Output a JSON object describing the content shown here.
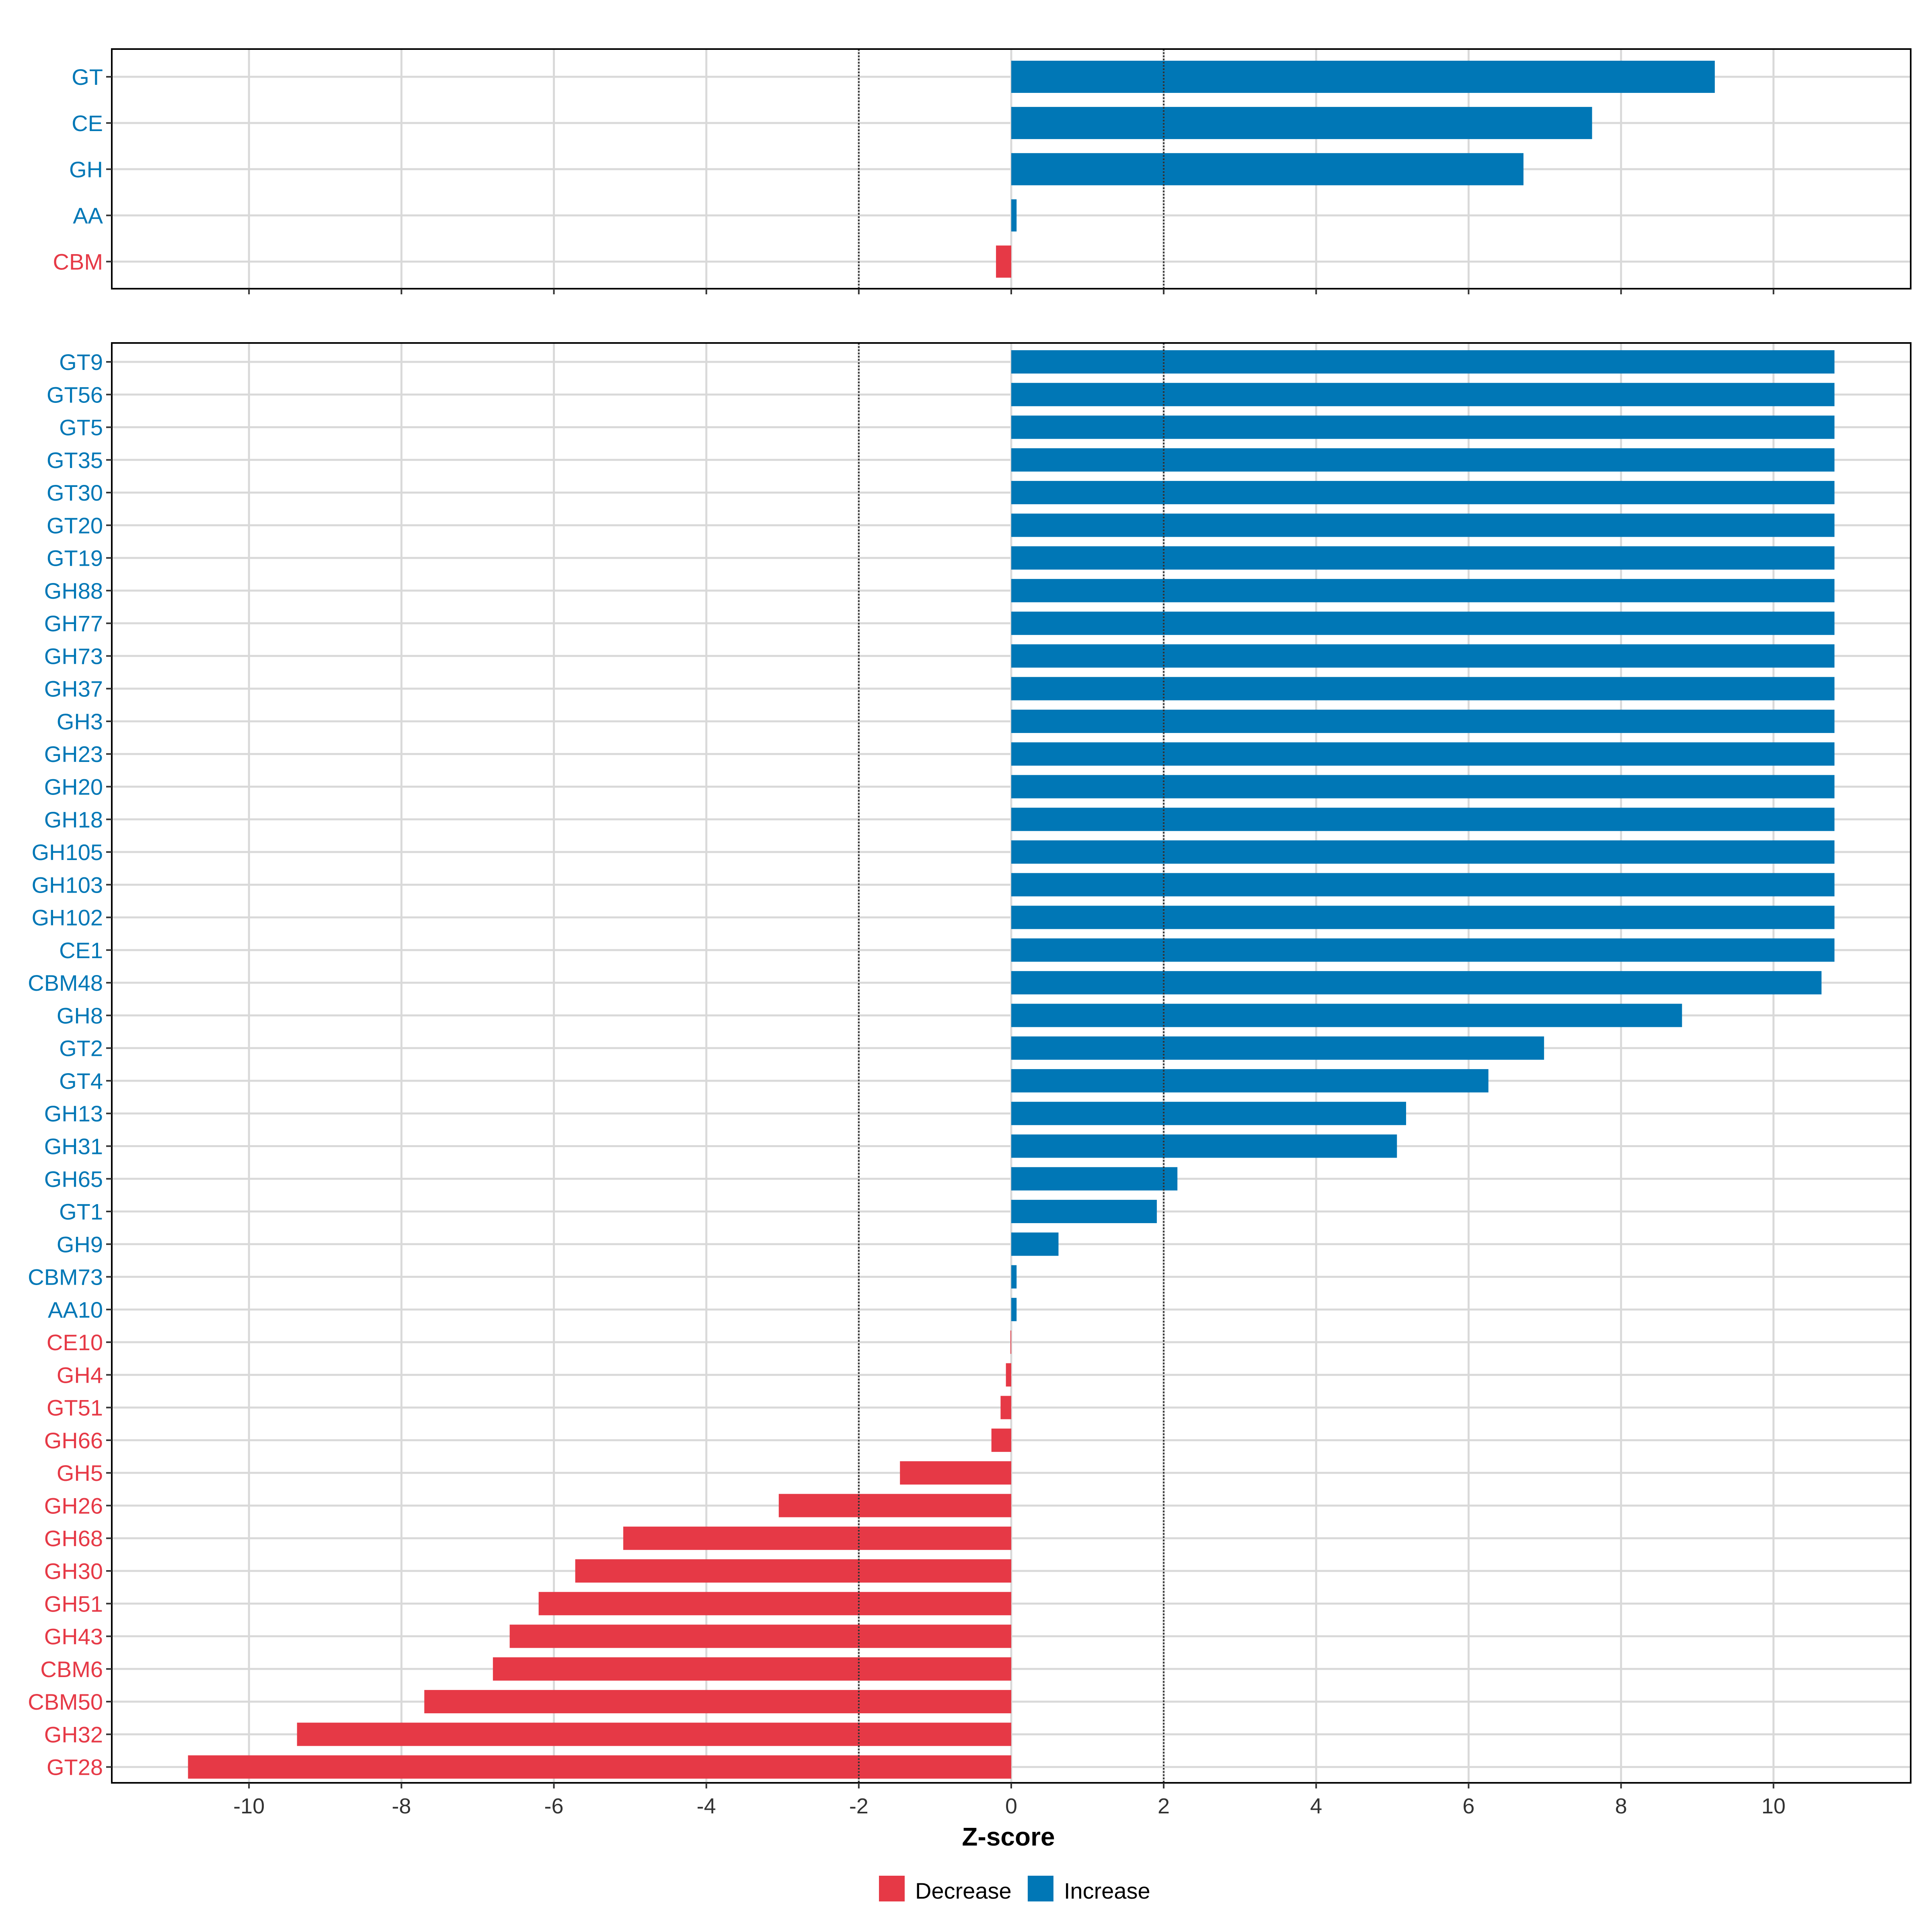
{
  "colors": {
    "decrease": "#E63946",
    "increase": "#0077B6",
    "grid": "#D9D9D9",
    "threshold": "#333333",
    "axis_text": "#333333"
  },
  "legend": {
    "decrease_label": "Decrease",
    "increase_label": "Increase"
  },
  "chart_data": [
    {
      "type": "bar",
      "orientation": "horizontal",
      "panel": "top",
      "title": "",
      "xlabel": "",
      "ylabel": "",
      "xlim": [
        -11.8,
        11.8
      ],
      "xticks": [
        -10,
        -8,
        -6,
        -4,
        -2,
        0,
        2,
        4,
        6,
        8,
        10
      ],
      "show_tick_labels": false,
      "thresholds": [
        -2,
        2
      ],
      "grid": true,
      "categories": [
        "GT",
        "CE",
        "GH",
        "AA",
        "CBM"
      ],
      "values": [
        9.23,
        7.62,
        6.72,
        0.07,
        -0.2
      ]
    },
    {
      "type": "bar",
      "orientation": "horizontal",
      "panel": "bottom",
      "title": "",
      "xlabel": "Z-score",
      "ylabel": "",
      "xlim": [
        -11.8,
        11.8
      ],
      "xticks": [
        -10,
        -8,
        -6,
        -4,
        -2,
        0,
        2,
        4,
        6,
        8,
        10
      ],
      "show_tick_labels": true,
      "thresholds": [
        -2,
        2
      ],
      "grid": true,
      "legend_position": "bottom",
      "categories": [
        "GT9",
        "GT56",
        "GT5",
        "GT35",
        "GT30",
        "GT20",
        "GT19",
        "GH88",
        "GH77",
        "GH73",
        "GH37",
        "GH3",
        "GH23",
        "GH20",
        "GH18",
        "GH105",
        "GH103",
        "GH102",
        "CE1",
        "CBM48",
        "GH8",
        "GT2",
        "GT4",
        "GH13",
        "GH31",
        "GH65",
        "GT1",
        "GH9",
        "CBM73",
        "AA10",
        "CE10",
        "GH4",
        "GT51",
        "GH66",
        "GH5",
        "GH26",
        "GH68",
        "GH30",
        "GH51",
        "GH43",
        "CBM6",
        "CBM50",
        "GH32",
        "GT28"
      ],
      "values": [
        10.8,
        10.8,
        10.8,
        10.8,
        10.8,
        10.8,
        10.8,
        10.8,
        10.8,
        10.8,
        10.8,
        10.8,
        10.8,
        10.8,
        10.8,
        10.8,
        10.8,
        10.8,
        10.8,
        10.63,
        8.8,
        6.99,
        6.26,
        5.18,
        5.06,
        2.18,
        1.91,
        0.62,
        0.07,
        0.07,
        -0.01,
        -0.07,
        -0.14,
        -0.26,
        -1.46,
        -3.05,
        -5.09,
        -5.72,
        -6.2,
        -6.58,
        -6.8,
        -7.7,
        -9.37,
        -10.8
      ]
    }
  ]
}
